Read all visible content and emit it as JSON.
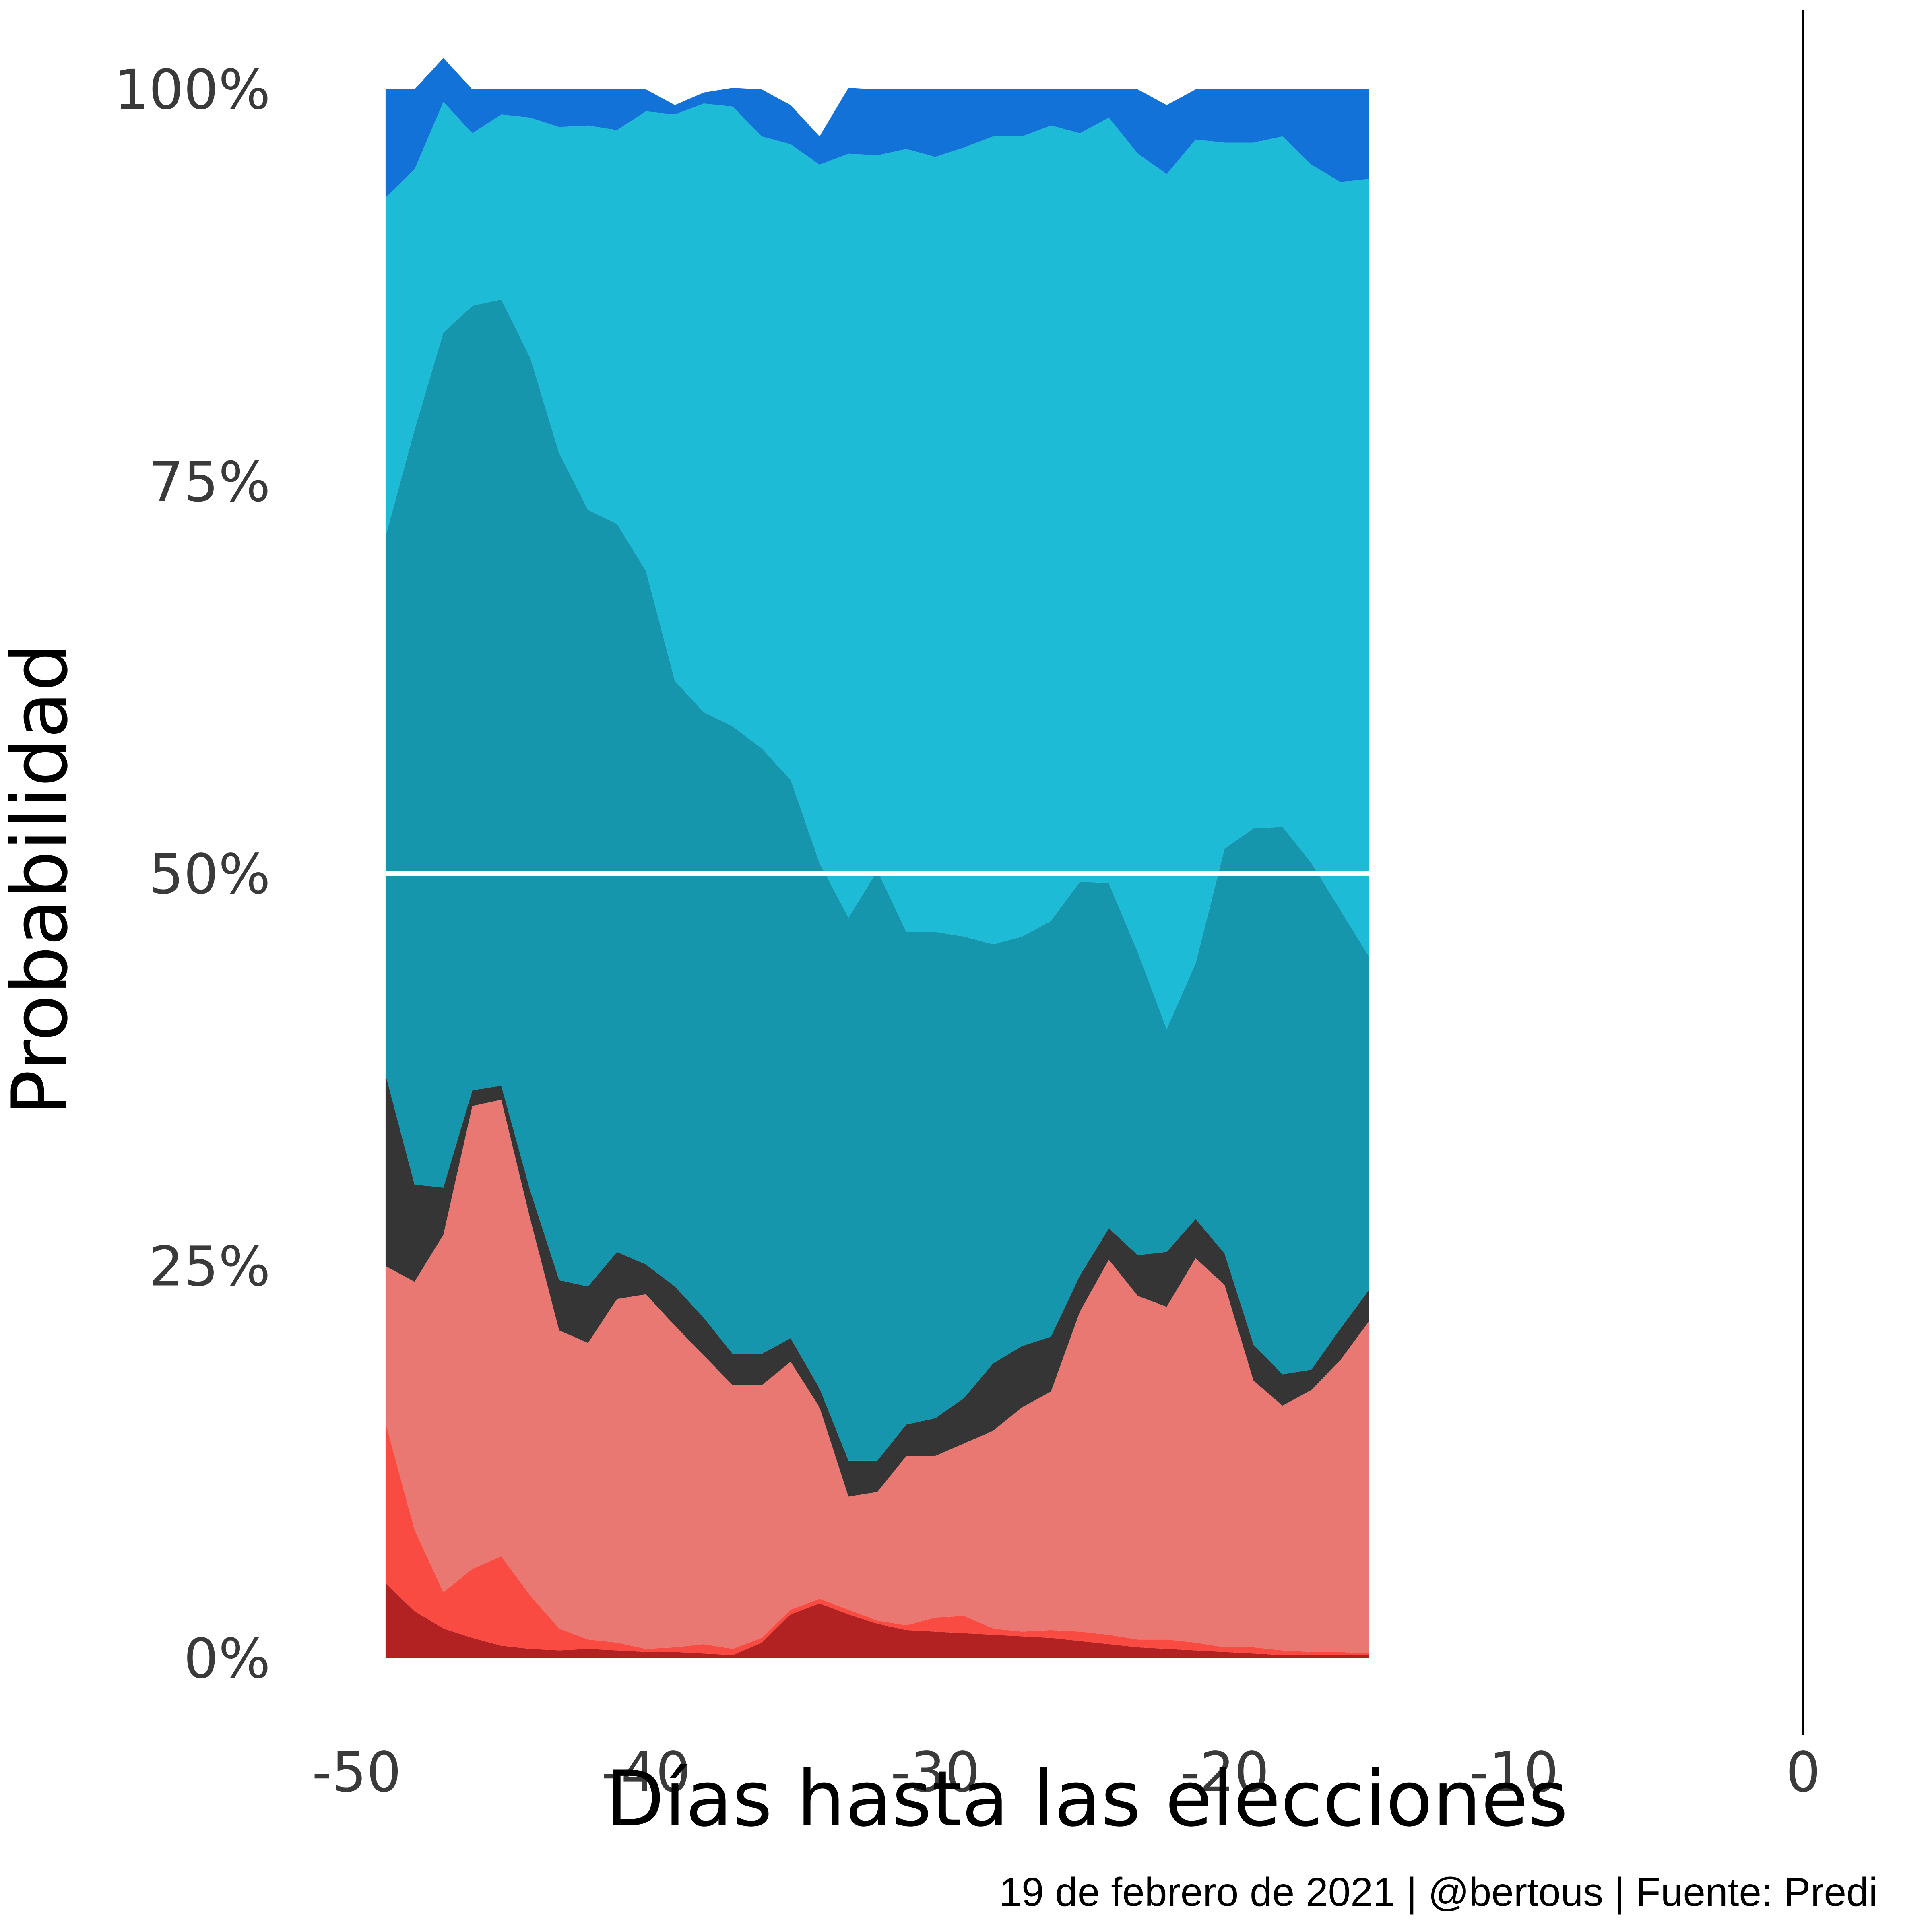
{
  "chart_data": {
    "type": "area",
    "stacked": true,
    "title": "",
    "xlabel": "Días hasta las elecciones",
    "ylabel": "Probabilidad",
    "caption": "19 de febrero de 2021 | @bertous | Fuente: Predi",
    "xlim": [
      -50,
      0
    ],
    "ylim": [
      0,
      100
    ],
    "xticks": [
      {
        "value": -50,
        "label": "-50"
      },
      {
        "value": -40,
        "label": "-40"
      },
      {
        "value": -30,
        "label": "-30"
      },
      {
        "value": -20,
        "label": "-20"
      },
      {
        "value": -10,
        "label": "-10"
      },
      {
        "value": 0,
        "label": "0"
      }
    ],
    "yticks": [
      {
        "value": 0,
        "label": "0%"
      },
      {
        "value": 25,
        "label": "25%"
      },
      {
        "value": 50,
        "label": "50%"
      },
      {
        "value": 75,
        "label": "75%"
      },
      {
        "value": 100,
        "label": "100%"
      }
    ],
    "reference_hline": {
      "value": 50,
      "color": "#ffffff"
    },
    "reference_vline": {
      "value": 0,
      "color": "#000000"
    },
    "x": [
      -49,
      -48,
      -47,
      -46,
      -45,
      -44,
      -43,
      -42,
      -41,
      -40,
      -39,
      -38,
      -37,
      -36,
      -35,
      -34,
      -33,
      -32,
      -31,
      -30,
      -29,
      -28,
      -27,
      -26,
      -25,
      -24,
      -23,
      -22,
      -21,
      -20,
      -19,
      -18,
      -17,
      -16,
      -15
    ],
    "series": [
      {
        "color": "#b22222",
        "values": [
          4.8,
          3.0,
          1.9,
          1.3,
          0.8,
          0.6,
          0.5,
          0.6,
          0.5,
          0.4,
          0.4,
          0.3,
          0.2,
          1.0,
          2.8,
          3.5,
          2.8,
          2.2,
          1.8,
          1.7,
          1.6,
          1.5,
          1.4,
          1.3,
          1.1,
          0.9,
          0.7,
          0.6,
          0.5,
          0.4,
          0.3,
          0.2,
          0.2,
          0.2,
          0.2
        ]
      },
      {
        "color": "#fa4b42",
        "values": [
          10.2,
          5.2,
          2.3,
          4.4,
          5.7,
          3.4,
          1.4,
          0.6,
          0.5,
          0.2,
          0.3,
          0.6,
          0.4,
          0.3,
          0.3,
          0.3,
          0.3,
          0.2,
          0.3,
          0.9,
          1.1,
          0.4,
          0.3,
          0.5,
          0.6,
          0.6,
          0.5,
          0.6,
          0.5,
          0.3,
          0.4,
          0.3,
          0.2,
          0.2,
          0.1
        ]
      },
      {
        "color": "#ea7872",
        "values": [
          10.0,
          15.8,
          22.8,
          29.5,
          29.1,
          24.0,
          19.0,
          18.9,
          21.9,
          22.6,
          20.5,
          18.4,
          16.8,
          16.1,
          15.8,
          12.2,
          7.2,
          8.2,
          10.8,
          10.3,
          11.0,
          12.6,
          14.3,
          15.2,
          20.4,
          23.9,
          21.9,
          21.2,
          24.5,
          23.1,
          17.0,
          15.6,
          16.7,
          18.6,
          21.2
        ]
      },
      {
        "color": "#353535",
        "values": [
          12.2,
          6.2,
          3.0,
          1.0,
          0.9,
          1.8,
          3.2,
          3.6,
          3.0,
          1.9,
          2.5,
          2.4,
          2.0,
          2.0,
          1.5,
          1.2,
          2.3,
          2.0,
          2.0,
          2.4,
          2.9,
          4.3,
          3.9,
          3.5,
          2.3,
          2.0,
          2.6,
          3.5,
          2.5,
          2.0,
          2.3,
          2.0,
          1.3,
          2.0,
          2.0
        ]
      },
      {
        "color": "#1596ac",
        "values": [
          34.3,
          48.1,
          54.5,
          50.0,
          50.1,
          53.1,
          52.7,
          49.5,
          46.4,
          44.2,
          38.6,
          38.6,
          40.0,
          38.6,
          35.6,
          33.5,
          34.6,
          37.6,
          31.4,
          31.0,
          29.4,
          26.7,
          26.1,
          26.5,
          25.1,
          22.0,
          19.3,
          14.2,
          16.3,
          25.8,
          32.9,
          34.9,
          32.3,
          26.7,
          21.2
        ]
      },
      {
        "color": "#1ebbd6",
        "values": [
          21.6,
          16.6,
          14.7,
          11.0,
          11.8,
          15.3,
          20.8,
          24.5,
          25.1,
          29.3,
          36.1,
          38.8,
          39.5,
          39.0,
          40.5,
          44.5,
          48.7,
          45.6,
          49.9,
          49.4,
          50.3,
          51.5,
          51.0,
          50.7,
          47.7,
          48.8,
          50.9,
          54.5,
          52.5,
          45.0,
          43.7,
          44.0,
          44.5,
          46.4,
          49.6
        ]
      },
      {
        "color": "#1372d7",
        "values": [
          6.9,
          5.1,
          2.8,
          2.8,
          1.6,
          1.8,
          2.4,
          2.3,
          2.6,
          1.4,
          0.6,
          0.7,
          1.2,
          3.0,
          2.5,
          1.8,
          4.2,
          4.2,
          3.8,
          4.3,
          3.7,
          3.0,
          3.0,
          2.3,
          2.8,
          1.8,
          4.1,
          4.4,
          3.2,
          3.4,
          3.4,
          3.0,
          4.8,
          5.9,
          5.7
        ]
      }
    ]
  }
}
